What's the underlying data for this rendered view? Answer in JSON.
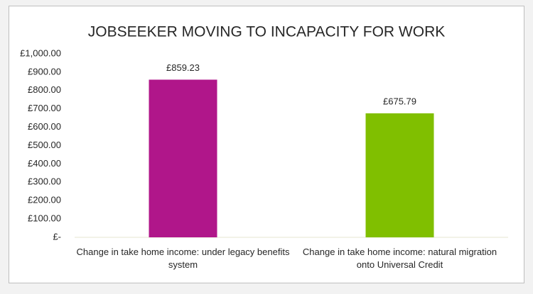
{
  "chart_data": {
    "type": "bar",
    "title": "JOBSEEKER MOVING TO INCAPACITY FOR WORK",
    "categories": [
      "Change in take home income: under legacy benefits system",
      "Change in take home income: natural migration onto Universal Credit"
    ],
    "values": [
      859.23,
      675.79
    ],
    "value_labels": [
      "£859.23",
      "£675.79"
    ],
    "colors": [
      "#b0168a",
      "#80bf00"
    ],
    "ylim": [
      0,
      1000
    ],
    "yticks": [
      {
        "value": 0,
        "label": "£-"
      },
      {
        "value": 100,
        "label": "£100.00"
      },
      {
        "value": 200,
        "label": "£200.00"
      },
      {
        "value": 300,
        "label": "£300.00"
      },
      {
        "value": 400,
        "label": "£400.00"
      },
      {
        "value": 500,
        "label": "£500.00"
      },
      {
        "value": 600,
        "label": "£600.00"
      },
      {
        "value": 700,
        "label": "£700.00"
      },
      {
        "value": 800,
        "label": "£800.00"
      },
      {
        "value": 900,
        "label": "£900.00"
      },
      {
        "value": 1000,
        "label": "£1,000.00"
      }
    ],
    "grid": false
  }
}
